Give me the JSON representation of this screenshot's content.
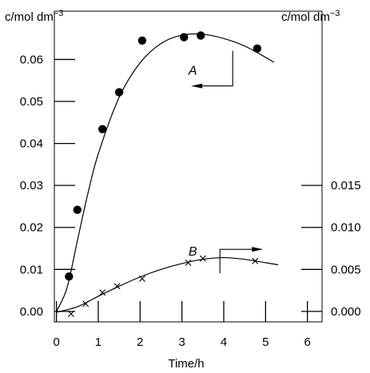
{
  "chart_data": {
    "type": "scatter",
    "xlabel": "Time/h",
    "ylabel_left": "c/mol dm",
    "ylabel_right": "c/mol dm",
    "unit_exponent": "−3",
    "xlim": [
      -0.05,
      6.35
    ],
    "ylim_left": [
      -0.0025,
      0.0715
    ],
    "ylim_right": [
      -0.00125,
      0.03575
    ],
    "x_ticks": [
      0,
      1,
      2,
      3,
      4,
      5,
      6
    ],
    "x_tick_labels": [
      "0",
      "1",
      "2",
      "3",
      "4",
      "5",
      "6"
    ],
    "y_ticks_left": [
      0.0,
      0.01,
      0.02,
      0.03,
      0.04,
      0.05,
      0.06
    ],
    "y_tick_labels_left": [
      "0.00",
      "0.01",
      "0.02",
      "0.03",
      "0.04",
      "0.05",
      "0.06"
    ],
    "y_ticks_right": [
      0.0,
      0.005,
      0.01,
      0.015
    ],
    "y_tick_labels_right": [
      "0.000",
      "0.005",
      "0.010",
      "0.015"
    ],
    "grid": false,
    "series": [
      {
        "name": "A",
        "axis": "left",
        "marker": "filled-circle",
        "points": [
          {
            "x": 0.3,
            "y": 0.0083
          },
          {
            "x": 0.5,
            "y": 0.0242
          },
          {
            "x": 1.1,
            "y": 0.0434
          },
          {
            "x": 1.5,
            "y": 0.0522
          },
          {
            "x": 2.05,
            "y": 0.0645
          },
          {
            "x": 3.05,
            "y": 0.0653
          },
          {
            "x": 3.45,
            "y": 0.0657
          },
          {
            "x": 4.8,
            "y": 0.0626
          }
        ],
        "curve": [
          {
            "x": 0.0,
            "y": 0.0
          },
          {
            "x": 0.25,
            "y": 0.0055
          },
          {
            "x": 0.5,
            "y": 0.0168
          },
          {
            "x": 0.75,
            "y": 0.028
          },
          {
            "x": 1.0,
            "y": 0.0375
          },
          {
            "x": 1.5,
            "y": 0.051
          },
          {
            "x": 2.0,
            "y": 0.0592
          },
          {
            "x": 2.5,
            "y": 0.0638
          },
          {
            "x": 3.0,
            "y": 0.0658
          },
          {
            "x": 3.5,
            "y": 0.066
          },
          {
            "x": 4.0,
            "y": 0.065
          },
          {
            "x": 4.5,
            "y": 0.0632
          },
          {
            "x": 5.0,
            "y": 0.0605
          },
          {
            "x": 5.2,
            "y": 0.0593
          }
        ]
      },
      {
        "name": "B",
        "axis": "right",
        "marker": "x",
        "points": [
          {
            "x": 0.35,
            "y": -0.0003
          },
          {
            "x": 0.7,
            "y": 0.0009
          },
          {
            "x": 1.1,
            "y": 0.00225
          },
          {
            "x": 1.45,
            "y": 0.003
          },
          {
            "x": 2.05,
            "y": 0.0039
          },
          {
            "x": 3.15,
            "y": 0.0058
          },
          {
            "x": 3.5,
            "y": 0.0063
          },
          {
            "x": 4.75,
            "y": 0.006
          }
        ],
        "curve": [
          {
            "x": 0.0,
            "y": -0.0001
          },
          {
            "x": 0.5,
            "y": 0.00055
          },
          {
            "x": 1.0,
            "y": 0.0018
          },
          {
            "x": 1.5,
            "y": 0.003
          },
          {
            "x": 2.0,
            "y": 0.0041
          },
          {
            "x": 2.5,
            "y": 0.005
          },
          {
            "x": 3.0,
            "y": 0.0057
          },
          {
            "x": 3.5,
            "y": 0.0062
          },
          {
            "x": 4.0,
            "y": 0.0064
          },
          {
            "x": 4.5,
            "y": 0.0062
          },
          {
            "x": 5.0,
            "y": 0.0058
          },
          {
            "x": 5.3,
            "y": 0.00555
          }
        ]
      }
    ],
    "annotations": [
      {
        "text": "A",
        "x": 3.45,
        "y": 0.0575,
        "axis": "left",
        "arrow": "left"
      },
      {
        "text": "B",
        "x": 3.45,
        "y": 0.0072,
        "axis": "right",
        "arrow": "right"
      }
    ]
  }
}
